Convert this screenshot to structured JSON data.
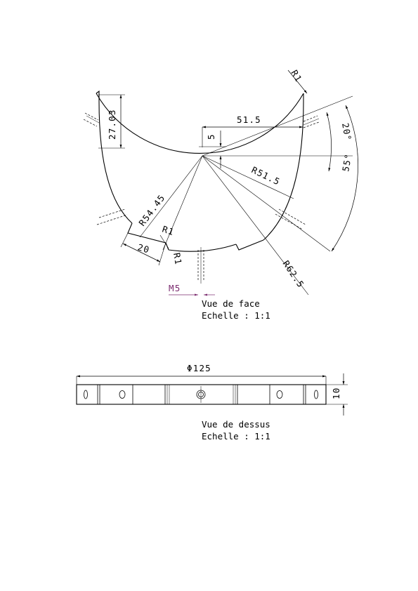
{
  "front_view": {
    "dims": {
      "r1_top": "R1",
      "d51_5": "51.5",
      "d27_03": "27.03",
      "d5": "5",
      "r51_5": "R51.5",
      "r54_45": "R54.45",
      "r1_left": "R1",
      "d20": "20",
      "r1_bottom": "R1",
      "r62_5": "R62.5",
      "m5": "M5",
      "a20": "20°",
      "a55": "55°"
    },
    "caption_title": "Vue de face",
    "caption_scale": "Echelle :  1:1"
  },
  "top_view": {
    "dims": {
      "diameter": "Φ125",
      "height": "10"
    },
    "caption_title": "Vue de dessus",
    "caption_scale": "Echelle :  1:1"
  },
  "colors": {
    "line": "#000000",
    "thread_callout": "#7a2a6e"
  }
}
